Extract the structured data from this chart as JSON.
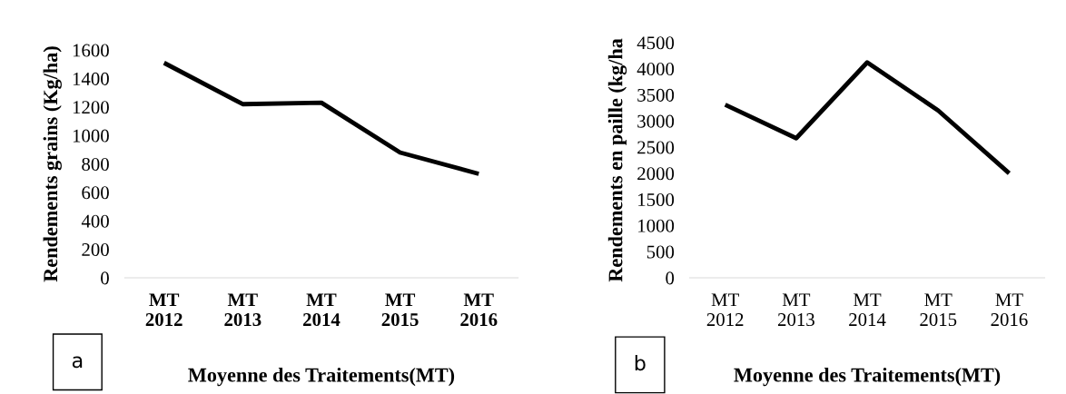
{
  "chart_data": [
    {
      "type": "line",
      "ylabel": "Rendements grains (Kg/ha)",
      "xlabel": "Moyenne des Traitements(MT)",
      "categories": [
        "MT\n2012",
        "MT\n2013",
        "MT\n2014",
        "MT\n2015",
        "MT\n2016"
      ],
      "series": [
        {
          "color": "#000000",
          "values": [
            1510,
            1220,
            1230,
            880,
            730
          ]
        }
      ],
      "ylim": [
        0,
        1600
      ],
      "yticks": [
        0,
        200,
        400,
        600,
        800,
        1000,
        1200,
        1400,
        1600
      ],
      "grid": false,
      "legend": false,
      "marker": "none",
      "annotations": [
        "a"
      ]
    },
    {
      "type": "line",
      "ylabel": "Rendements en paille (kg/ha",
      "xlabel": "Moyenne des Traitements(MT)",
      "categories": [
        "MT\n2012",
        "MT\n2013",
        "MT\n2014",
        "MT\n2015",
        "MT\n2016"
      ],
      "series": [
        {
          "color": "#000000",
          "values": [
            3310,
            2670,
            4120,
            3200,
            2000
          ]
        }
      ],
      "ylim": [
        0,
        4500
      ],
      "yticks": [
        0,
        500,
        1000,
        1500,
        2000,
        2500,
        3000,
        3500,
        4000,
        4500
      ],
      "grid": false,
      "legend": false,
      "marker": "none",
      "annotations": [
        "b"
      ]
    }
  ]
}
